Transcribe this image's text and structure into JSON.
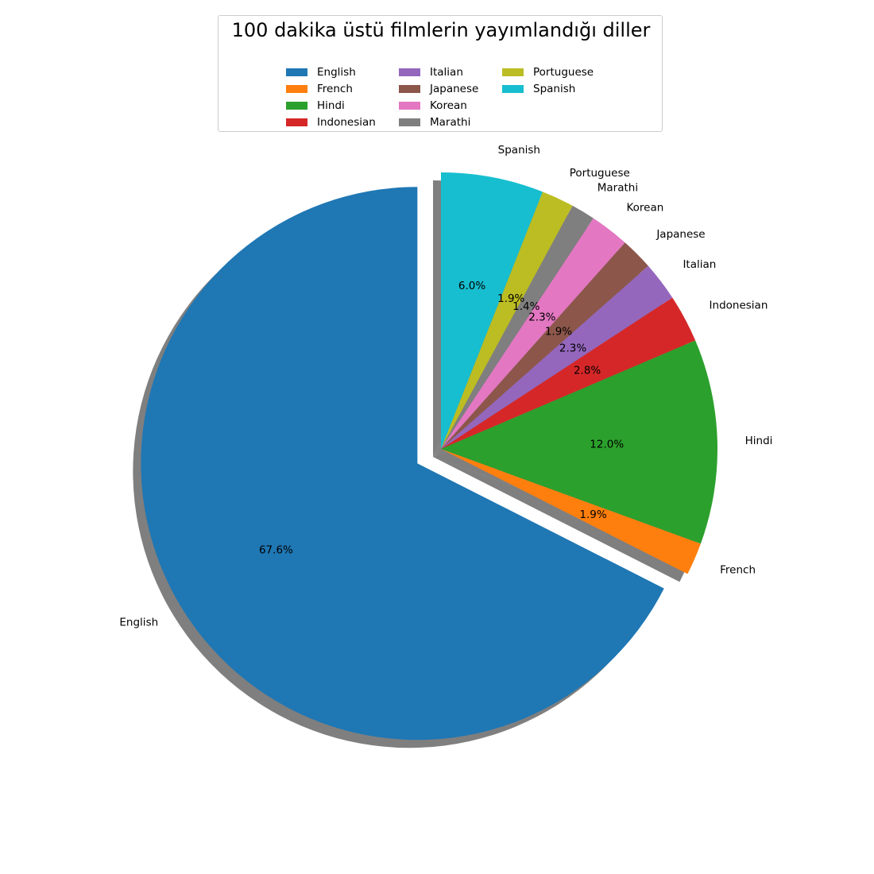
{
  "chart_data": {
    "type": "pie",
    "title": "100 dakika üstü filmlerin yayımlandığı diller",
    "legend_position": "top",
    "legend_columns": 3,
    "shadow": true,
    "exploded_slice": "English",
    "slices": [
      {
        "label": "English",
        "value": 67.6,
        "pct_label": "67.6%",
        "color": "#1f77b4"
      },
      {
        "label": "French",
        "value": 1.9,
        "pct_label": "1.9%",
        "color": "#ff7f0e"
      },
      {
        "label": "Hindi",
        "value": 12.0,
        "pct_label": "12.0%",
        "color": "#2ca02c"
      },
      {
        "label": "Indonesian",
        "value": 2.8,
        "pct_label": "2.8%",
        "color": "#d62728"
      },
      {
        "label": "Italian",
        "value": 2.3,
        "pct_label": "2.3%",
        "color": "#9467bd"
      },
      {
        "label": "Japanese",
        "value": 1.9,
        "pct_label": "1.9%",
        "color": "#8c564b"
      },
      {
        "label": "Korean",
        "value": 2.3,
        "pct_label": "2.3%",
        "color": "#e377c2"
      },
      {
        "label": "Marathi",
        "value": 1.4,
        "pct_label": "1.4%",
        "color": "#7f7f7f"
      },
      {
        "label": "Portuguese",
        "value": 1.9,
        "pct_label": "1.9%",
        "color": "#bcbd22"
      },
      {
        "label": "Spanish",
        "value": 6.0,
        "pct_label": "6.0%",
        "color": "#17becf"
      }
    ]
  }
}
